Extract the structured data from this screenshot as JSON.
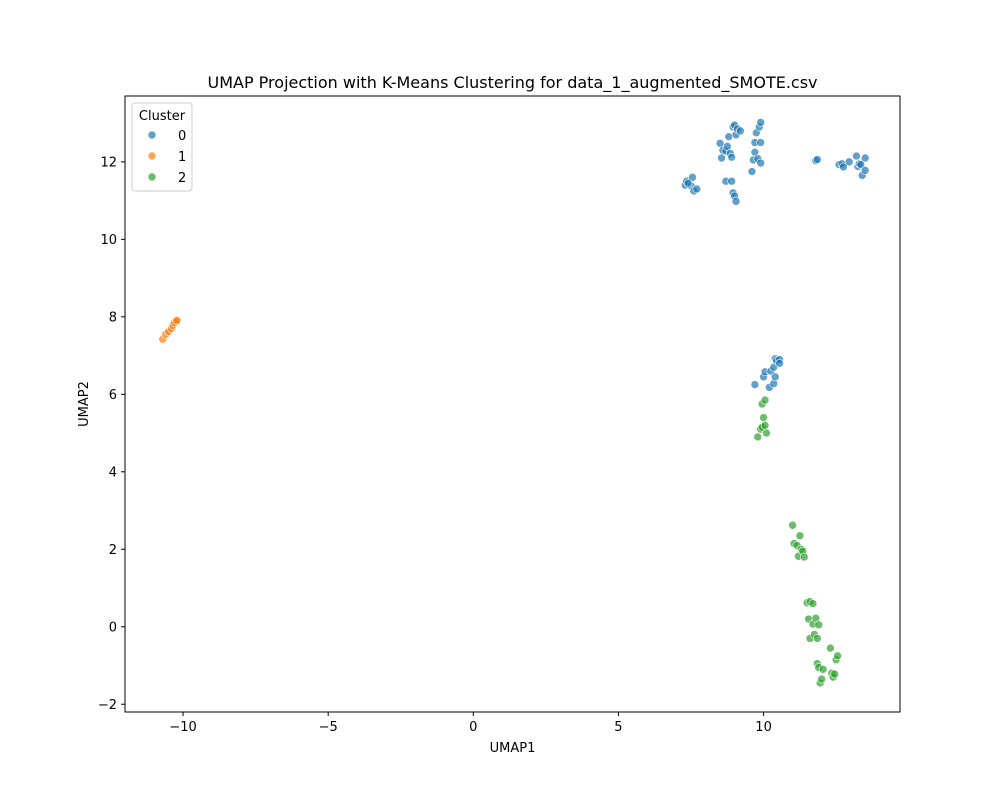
{
  "chart_data": {
    "type": "scatter",
    "title": "UMAP Projection with K-Means Clustering for data_1_augmented_SMOTE.csv",
    "xlabel": "UMAP1",
    "ylabel": "UMAP2",
    "xlim": [
      -12,
      14.7
    ],
    "ylim": [
      -2.2,
      13.7
    ],
    "xticks": [
      -10,
      -5,
      0,
      5,
      10
    ],
    "yticks": [
      -2,
      0,
      2,
      4,
      6,
      8,
      10,
      12
    ],
    "grid": false,
    "legend": {
      "title": "Cluster",
      "position": "top-left"
    },
    "series": [
      {
        "name": "0",
        "color": "#1f77b4",
        "points": [
          [
            7.3,
            11.4
          ],
          [
            7.35,
            11.5
          ],
          [
            7.5,
            11.38
          ],
          [
            7.55,
            11.6
          ],
          [
            7.6,
            11.25
          ],
          [
            7.7,
            11.3
          ],
          [
            7.4,
            11.45
          ],
          [
            8.5,
            12.48
          ],
          [
            8.55,
            12.1
          ],
          [
            8.6,
            12.3
          ],
          [
            8.7,
            12.28
          ],
          [
            8.75,
            12.4
          ],
          [
            8.8,
            12.65
          ],
          [
            8.85,
            12.22
          ],
          [
            8.9,
            12.12
          ],
          [
            8.7,
            11.5
          ],
          [
            8.9,
            11.5
          ],
          [
            8.95,
            11.2
          ],
          [
            9.0,
            11.12
          ],
          [
            9.05,
            10.98
          ],
          [
            8.95,
            12.9
          ],
          [
            9.0,
            12.95
          ],
          [
            9.05,
            12.7
          ],
          [
            9.1,
            12.85
          ],
          [
            9.2,
            12.8
          ],
          [
            9.6,
            11.75
          ],
          [
            9.65,
            12.05
          ],
          [
            9.7,
            12.25
          ],
          [
            9.7,
            12.5
          ],
          [
            9.75,
            12.75
          ],
          [
            9.8,
            12.08
          ],
          [
            9.85,
            12.9
          ],
          [
            9.9,
            12.5
          ],
          [
            9.9,
            13.02
          ],
          [
            9.9,
            11.97
          ],
          [
            11.8,
            12.03
          ],
          [
            11.85,
            12.06
          ],
          [
            12.6,
            11.93
          ],
          [
            12.7,
            11.95
          ],
          [
            12.75,
            11.87
          ],
          [
            12.95,
            12.0
          ],
          [
            13.2,
            12.15
          ],
          [
            13.25,
            11.88
          ],
          [
            13.3,
            11.95
          ],
          [
            13.35,
            11.93
          ],
          [
            13.4,
            11.65
          ],
          [
            13.5,
            11.78
          ],
          [
            13.5,
            12.1
          ],
          [
            9.7,
            6.25
          ],
          [
            10.0,
            6.45
          ],
          [
            10.05,
            6.58
          ],
          [
            10.2,
            6.18
          ],
          [
            10.25,
            6.6
          ],
          [
            10.35,
            6.7
          ],
          [
            10.35,
            6.28
          ],
          [
            10.4,
            6.45
          ],
          [
            10.4,
            6.92
          ],
          [
            10.45,
            6.87
          ],
          [
            10.55,
            6.9
          ],
          [
            10.55,
            6.8
          ]
        ]
      },
      {
        "name": "1",
        "color": "#ff7f0e",
        "points": [
          [
            -10.7,
            7.42
          ],
          [
            -10.6,
            7.55
          ],
          [
            -10.5,
            7.62
          ],
          [
            -10.4,
            7.7
          ],
          [
            -10.35,
            7.78
          ],
          [
            -10.3,
            7.85
          ],
          [
            -10.2,
            7.92
          ],
          [
            -10.22,
            7.9
          ]
        ]
      },
      {
        "name": "2",
        "color": "#2ca02c",
        "points": [
          [
            9.8,
            4.9
          ],
          [
            9.9,
            5.1
          ],
          [
            9.95,
            5.15
          ],
          [
            9.95,
            5.75
          ],
          [
            10.0,
            5.4
          ],
          [
            10.05,
            5.2
          ],
          [
            10.05,
            5.85
          ],
          [
            10.1,
            5.0
          ],
          [
            11.0,
            2.62
          ],
          [
            11.05,
            2.15
          ],
          [
            11.15,
            2.1
          ],
          [
            11.2,
            1.82
          ],
          [
            11.25,
            2.35
          ],
          [
            11.3,
            2.0
          ],
          [
            11.35,
            1.95
          ],
          [
            11.4,
            1.8
          ],
          [
            11.5,
            0.62
          ],
          [
            11.6,
            0.65
          ],
          [
            11.7,
            0.6
          ],
          [
            11.55,
            0.2
          ],
          [
            11.6,
            -0.3
          ],
          [
            11.7,
            0.07
          ],
          [
            11.75,
            -0.2
          ],
          [
            11.8,
            0.22
          ],
          [
            11.85,
            -0.3
          ],
          [
            11.9,
            0.05
          ],
          [
            11.85,
            -0.95
          ],
          [
            11.9,
            -1.05
          ],
          [
            11.95,
            -1.45
          ],
          [
            12.0,
            -1.35
          ],
          [
            12.05,
            -1.1
          ],
          [
            12.3,
            -0.55
          ],
          [
            12.35,
            -1.2
          ],
          [
            12.4,
            -1.3
          ],
          [
            12.45,
            -1.22
          ],
          [
            12.5,
            -0.85
          ],
          [
            12.55,
            -0.75
          ]
        ]
      }
    ]
  }
}
